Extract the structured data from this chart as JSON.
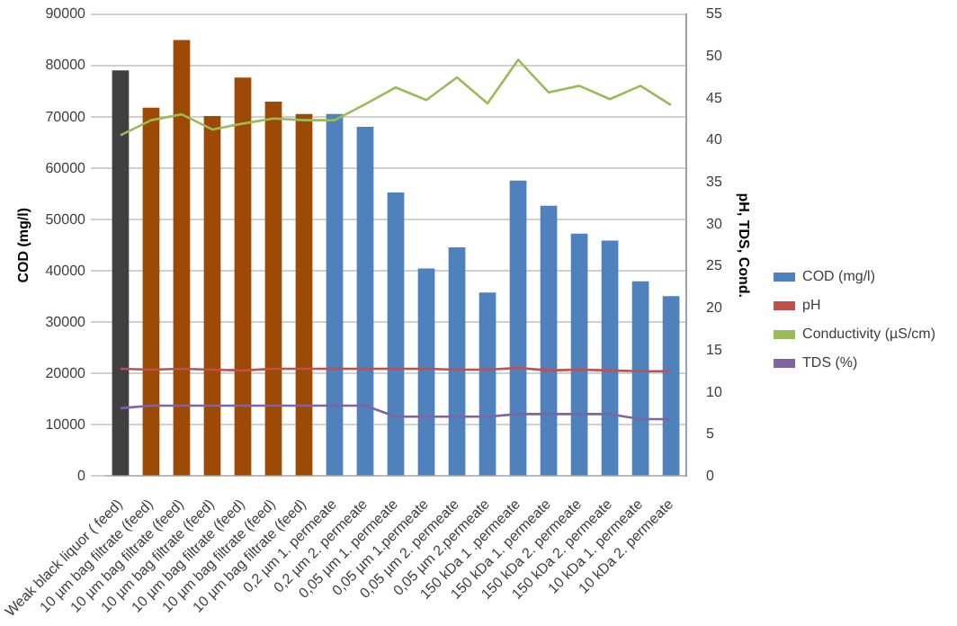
{
  "chart_data": {
    "type": "bar",
    "ylabel": "COD (mg/l)",
    "y2label": "pH, TDS, Cond.",
    "categories": [
      "Weak black liquor ( feed)",
      "10 µm bag filtrate (feed)",
      "10 µm bag filtrate (feed)",
      "10 µm bag filtrate (feed)",
      "10 µm bag filtrate (feed)",
      "10 µm bag filtrate (feed)",
      "10 µm bag filtrate (feed)",
      "0,2 µm 1. permeate",
      "0,2 µm 2. permeate",
      "0,05 µm 1. permeate",
      "0,05 µm 1.permeate",
      "0,05 µm 2. permeate",
      "0,05 µm 2.permeate",
      "150 kDa 1 .permeate",
      "150 kDa 1. permeate",
      "150 kDa 2. permeate",
      "150 kDa 2. permeate",
      "10 kDa 1. permeate",
      "10 kDa 2. permeate"
    ],
    "series": [
      {
        "name": "COD (mg/l)",
        "color": "#4f81bd",
        "colors": [
          "#404040",
          "#9c4a06",
          "#9c4a06",
          "#9c4a06",
          "#9c4a06",
          "#9c4a06",
          "#9c4a06",
          "#4f81bd",
          "#4f81bd",
          "#4f81bd",
          "#4f81bd",
          "#4f81bd",
          "#4f81bd",
          "#4f81bd",
          "#4f81bd",
          "#4f81bd",
          "#4f81bd",
          "#4f81bd",
          "#4f81bd"
        ],
        "values": [
          79100,
          71800,
          85000,
          70200,
          77700,
          73000,
          70600,
          70600,
          68100,
          55300,
          40500,
          44600,
          35800,
          57600,
          52700,
          47300,
          45900,
          38000,
          35100
        ]
      },
      {
        "name": "pH",
        "type": "line",
        "axis": "y2",
        "color": "#c0504d",
        "values": [
          12.8,
          12.7,
          12.8,
          12.7,
          12.6,
          12.8,
          12.8,
          12.8,
          12.8,
          12.8,
          12.8,
          12.7,
          12.7,
          12.9,
          12.6,
          12.7,
          12.6,
          12.5,
          12.5
        ]
      },
      {
        "name": "Conductivity (µS/cm)",
        "type": "line",
        "axis": "y2",
        "color": "#9bbb59",
        "values": [
          40.6,
          42.4,
          43.1,
          41.3,
          42.0,
          42.6,
          42.4,
          42.4,
          44.3,
          46.3,
          44.8,
          47.5,
          44.4,
          49.6,
          45.7,
          46.5,
          44.9,
          46.5,
          44.2
        ]
      },
      {
        "name": "TDS (%)",
        "type": "line",
        "axis": "y2",
        "color": "#8064a2",
        "values": [
          8.1,
          8.4,
          8.4,
          8.4,
          8.4,
          8.4,
          8.4,
          8.4,
          8.4,
          7.1,
          7.1,
          7.1,
          7.1,
          7.4,
          7.4,
          7.4,
          7.4,
          6.8,
          6.8
        ]
      }
    ],
    "ylim": [
      0,
      90000
    ],
    "yticks": [
      0,
      10000,
      20000,
      30000,
      40000,
      50000,
      60000,
      70000,
      80000,
      90000
    ],
    "y2lim": [
      0,
      55
    ],
    "y2ticks": [
      0,
      5,
      10,
      15,
      20,
      25,
      30,
      35,
      40,
      45,
      50,
      55
    ],
    "grid": "y",
    "legend": "right",
    "marker": "none"
  }
}
